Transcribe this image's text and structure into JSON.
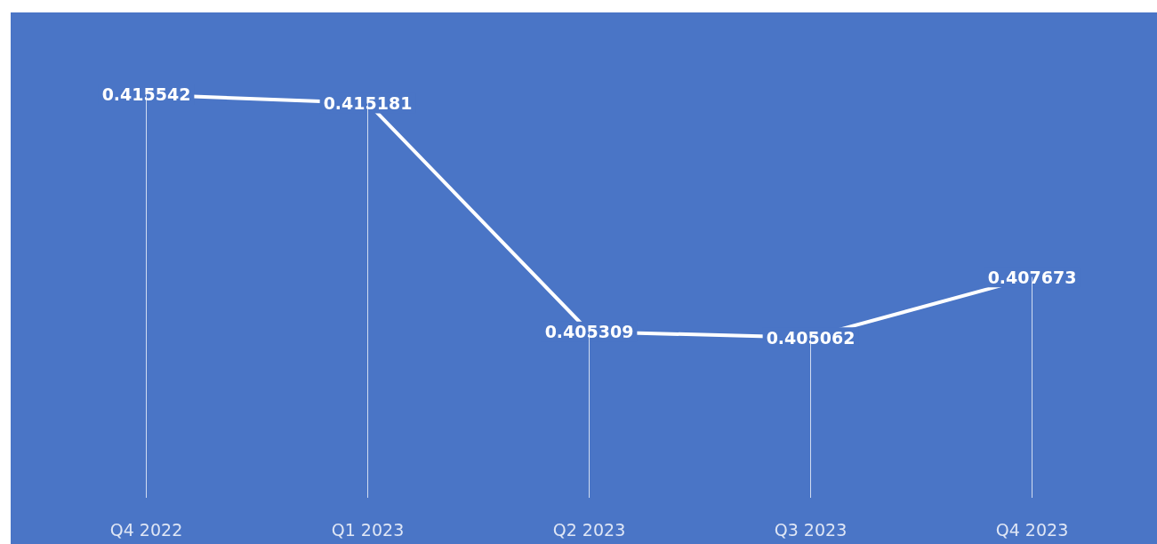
{
  "chart_data": {
    "type": "line",
    "categories": [
      "Q4 2022",
      "Q1 2023",
      "Q2 2023",
      "Q3 2023",
      "Q4 2023"
    ],
    "series": [
      {
        "color": "#ffffff",
        "values": [
          0.415542,
          0.415181,
          0.405309,
          0.405062,
          0.407673
        ]
      }
    ],
    "data_labels": true,
    "grid": "x",
    "line_style": "solid"
  }
}
